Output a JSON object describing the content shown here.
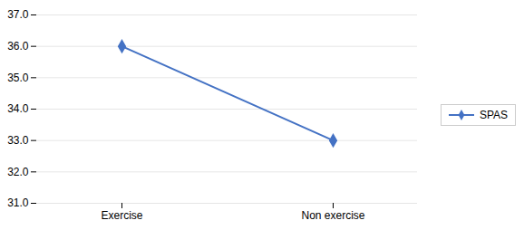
{
  "chart_data": {
    "type": "line",
    "categories": [
      "Exercise",
      "Non exercise"
    ],
    "series": [
      {
        "name": "SPAS",
        "color": "#4472C4",
        "marker": "diamond",
        "values": [
          36,
          33
        ]
      }
    ],
    "ylim": [
      31,
      37
    ],
    "yticks": [
      31,
      32,
      33,
      34,
      35,
      36,
      37
    ],
    "grid": true,
    "legend": "right"
  }
}
